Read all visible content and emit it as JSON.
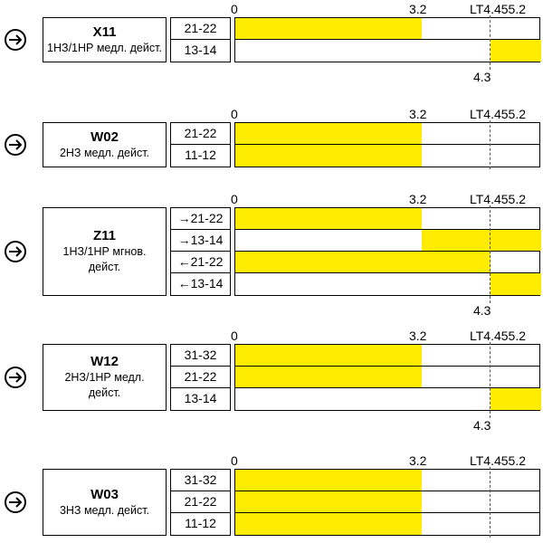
{
  "colors": {
    "active": "#ffec00",
    "line": "#000000"
  },
  "icon": "circled-arrow-icon",
  "scale": {
    "min": 0,
    "mid": 3.2,
    "max": 4.4,
    "mid_label": "3.2",
    "zero_label": "0",
    "ref_label": "LT4.455.2",
    "ref_value": 4.3
  },
  "diagrams": [
    {
      "code": "X11",
      "desc_lines": [
        "1НЗ/1НР медл. дейст."
      ],
      "contacts": [
        {
          "label": "21-22",
          "active": [
            0,
            3.2
          ]
        },
        {
          "label": "13-14",
          "active": [
            4.3,
            4.4
          ]
        }
      ],
      "marker": "4.3"
    },
    {
      "code": "W02",
      "desc_lines": [
        "2НЗ медл. дейст."
      ],
      "contacts": [
        {
          "label": "21-22",
          "active": [
            0,
            3.2
          ]
        },
        {
          "label": "11-12",
          "active": [
            0,
            3.2
          ]
        }
      ],
      "marker": ""
    },
    {
      "code": "Z11",
      "desc_lines": [
        "1НЗ/1НР мгнов.",
        "дейст."
      ],
      "contacts": [
        {
          "label": "→21-22",
          "active": [
            0,
            3.2
          ]
        },
        {
          "label": "→13-14",
          "active": [
            3.2,
            4.4
          ]
        },
        {
          "label": "←21-22",
          "active": [
            0,
            4.3
          ]
        },
        {
          "label": "←13-14",
          "active": [
            4.3,
            4.4
          ]
        }
      ],
      "marker": "4.3"
    },
    {
      "code": "W12",
      "desc_lines": [
        "2НЗ/1НР медл.",
        "дейст."
      ],
      "contacts": [
        {
          "label": "31-32",
          "active": [
            0,
            3.2
          ]
        },
        {
          "label": "21-22",
          "active": [
            0,
            3.2
          ]
        },
        {
          "label": "13-14",
          "active": [
            4.3,
            4.4
          ]
        }
      ],
      "marker": "4.3"
    },
    {
      "code": "W03",
      "desc_lines": [
        "3НЗ медл. дейст."
      ],
      "contacts": [
        {
          "label": "31-32",
          "active": [
            0,
            3.2
          ]
        },
        {
          "label": "21-22",
          "active": [
            0,
            3.2
          ]
        },
        {
          "label": "11-12",
          "active": [
            0,
            3.2
          ]
        }
      ],
      "marker": ""
    }
  ]
}
